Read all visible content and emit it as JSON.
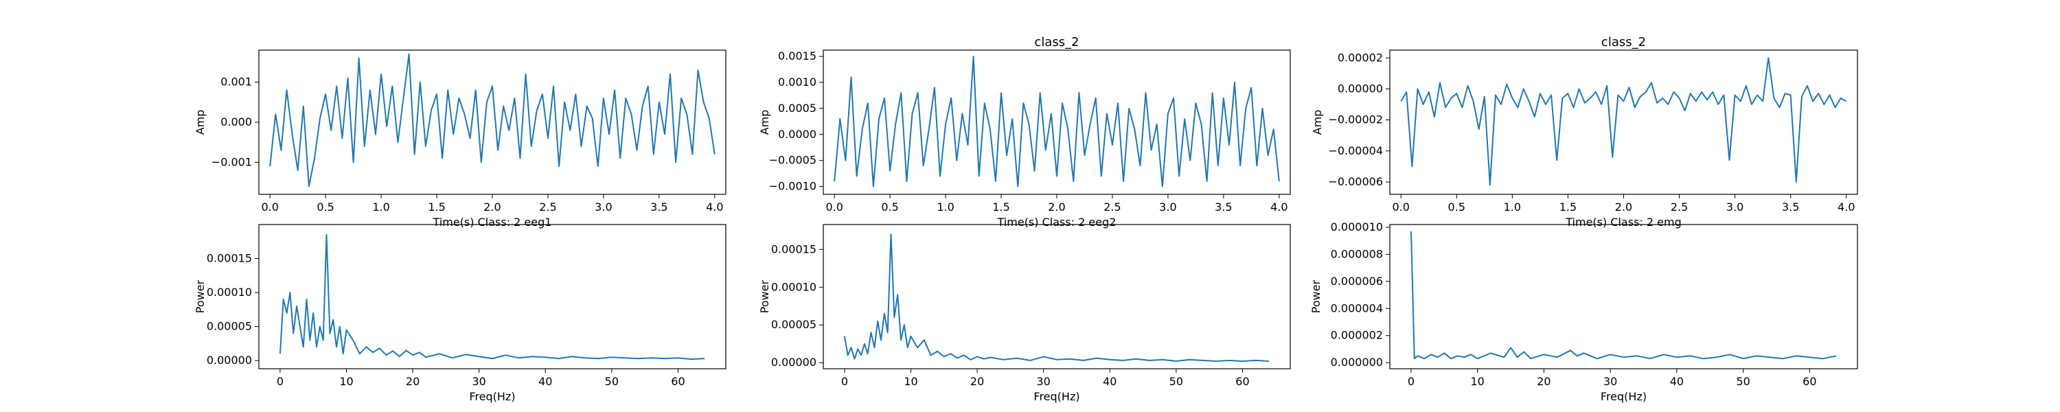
{
  "figure": {
    "background": "#ffffff",
    "line_color": "#1f77b4"
  },
  "chart_data": [
    {
      "id": "eeg1-time",
      "type": "line",
      "title": "",
      "xlabel": "Time(s) Class: 2 eeg1",
      "ylabel": "Amp",
      "xlim": [
        -0.1,
        4.1
      ],
      "ylim": [
        -0.0018,
        0.0018
      ],
      "xticks": [
        0.0,
        0.5,
        1.0,
        1.5,
        2.0,
        2.5,
        3.0,
        3.5,
        4.0
      ],
      "xtick_labels": [
        "0.0",
        "0.5",
        "1.0",
        "1.5",
        "2.0",
        "2.5",
        "3.0",
        "3.5",
        "4.0"
      ],
      "yticks": [
        -0.001,
        0.0,
        0.001
      ],
      "ytick_labels": [
        "−0.001",
        "0.000",
        "0.001"
      ],
      "grid": false,
      "series": [
        {
          "x": [
            0.0,
            0.05,
            0.1,
            0.15,
            0.2,
            0.25,
            0.3,
            0.35,
            0.4,
            0.45,
            0.5,
            0.55,
            0.6,
            0.65,
            0.7,
            0.75,
            0.8,
            0.85,
            0.9,
            0.95,
            1.0,
            1.05,
            1.1,
            1.15,
            1.2,
            1.25,
            1.3,
            1.35,
            1.4,
            1.45,
            1.5,
            1.55,
            1.6,
            1.65,
            1.7,
            1.75,
            1.8,
            1.85,
            1.9,
            1.95,
            2.0,
            2.05,
            2.1,
            2.15,
            2.2,
            2.25,
            2.3,
            2.35,
            2.4,
            2.45,
            2.5,
            2.55,
            2.6,
            2.65,
            2.7,
            2.75,
            2.8,
            2.85,
            2.9,
            2.95,
            3.0,
            3.05,
            3.1,
            3.15,
            3.2,
            3.25,
            3.3,
            3.35,
            3.4,
            3.45,
            3.5,
            3.55,
            3.6,
            3.65,
            3.7,
            3.75,
            3.8,
            3.85,
            3.9,
            3.95,
            4.0
          ],
          "values": [
            -0.0011,
            0.0002,
            -0.0007,
            0.0008,
            -0.0003,
            -0.0012,
            0.0004,
            -0.0016,
            -0.0009,
            0.0001,
            0.0007,
            -0.0002,
            0.0009,
            -0.0004,
            0.0011,
            -0.001,
            0.0016,
            -0.0006,
            0.0008,
            -0.0003,
            0.0012,
            -0.0001,
            0.0009,
            -0.0005,
            0.0006,
            0.0017,
            -0.0008,
            0.001,
            -0.0006,
            0.0003,
            0.0007,
            -0.0009,
            0.0008,
            -0.0003,
            0.0006,
            0.0002,
            -0.0004,
            0.0008,
            -0.001,
            0.0005,
            0.0009,
            -0.0007,
            0.0004,
            -0.0002,
            0.0006,
            -0.0009,
            0.0012,
            -0.0006,
            0.0003,
            0.0007,
            -0.0004,
            0.0009,
            -0.0011,
            0.0005,
            -0.0002,
            0.0007,
            -0.0006,
            0.0004,
            0.0001,
            -0.0011,
            0.0006,
            -0.0003,
            0.0008,
            -0.0009,
            0.0006,
            0.0002,
            -0.0007,
            0.0004,
            0.0009,
            -0.0008,
            0.0005,
            -0.0003,
            0.0012,
            -0.001,
            0.0006,
            0.0002,
            -0.0008,
            0.0013,
            0.0005,
            0.0001,
            -0.0008
          ]
        }
      ]
    },
    {
      "id": "eeg2-time",
      "type": "line",
      "title": "class_2",
      "xlabel": "Time(s) Class: 2 eeg2",
      "ylabel": "Amp",
      "xlim": [
        -0.1,
        4.1
      ],
      "ylim": [
        -0.00115,
        0.00162
      ],
      "xticks": [
        0.0,
        0.5,
        1.0,
        1.5,
        2.0,
        2.5,
        3.0,
        3.5,
        4.0
      ],
      "xtick_labels": [
        "0.0",
        "0.5",
        "1.0",
        "1.5",
        "2.0",
        "2.5",
        "3.0",
        "3.5",
        "4.0"
      ],
      "yticks": [
        -0.001,
        -0.0005,
        0.0,
        0.0005,
        0.001,
        0.0015
      ],
      "ytick_labels": [
        "−0.0010",
        "−0.0005",
        "0.0000",
        "0.0005",
        "0.0010",
        "0.0015"
      ],
      "grid": false,
      "series": [
        {
          "x": [
            0.0,
            0.05,
            0.1,
            0.15,
            0.2,
            0.25,
            0.3,
            0.35,
            0.4,
            0.45,
            0.5,
            0.55,
            0.6,
            0.65,
            0.7,
            0.75,
            0.8,
            0.85,
            0.9,
            0.95,
            1.0,
            1.05,
            1.1,
            1.15,
            1.2,
            1.25,
            1.3,
            1.35,
            1.4,
            1.45,
            1.5,
            1.55,
            1.6,
            1.65,
            1.7,
            1.75,
            1.8,
            1.85,
            1.9,
            1.95,
            2.0,
            2.05,
            2.1,
            2.15,
            2.2,
            2.25,
            2.3,
            2.35,
            2.4,
            2.45,
            2.5,
            2.55,
            2.6,
            2.65,
            2.7,
            2.75,
            2.8,
            2.85,
            2.9,
            2.95,
            3.0,
            3.05,
            3.1,
            3.15,
            3.2,
            3.25,
            3.3,
            3.35,
            3.4,
            3.45,
            3.5,
            3.55,
            3.6,
            3.65,
            3.7,
            3.75,
            3.8,
            3.85,
            3.9,
            3.95,
            4.0
          ],
          "values": [
            -0.0009,
            0.0003,
            -0.0005,
            0.0011,
            -0.0008,
            0.0001,
            0.0006,
            -0.001,
            0.0003,
            0.0007,
            -0.0007,
            0.0002,
            0.0008,
            -0.0009,
            0.0004,
            0.0008,
            -0.0006,
            0.0001,
            0.0009,
            -0.0008,
            0.0002,
            0.0007,
            -0.0005,
            0.0004,
            -0.0002,
            0.0015,
            -0.0008,
            0.0006,
            0.0001,
            -0.0009,
            0.0008,
            -0.0004,
            0.0003,
            -0.001,
            0.0006,
            0.0002,
            -0.0007,
            0.0008,
            -0.0003,
            0.0004,
            -0.0008,
            0.0006,
            0.0001,
            -0.0009,
            0.0008,
            -0.0004,
            0.0002,
            0.0007,
            -0.0008,
            0.0004,
            -0.0002,
            0.0006,
            -0.0009,
            0.0005,
            0.0001,
            -0.0006,
            0.0008,
            -0.0003,
            0.0002,
            -0.001,
            0.0004,
            0.0007,
            -0.0008,
            0.0003,
            -0.0005,
            0.0006,
            0.0002,
            -0.0009,
            0.0008,
            -0.0006,
            0.0007,
            -0.0002,
            0.001,
            -0.0006,
            0.0005,
            0.0009,
            -0.0006,
            0.0005,
            -0.0004,
            0.0001,
            -0.0009
          ]
        }
      ]
    },
    {
      "id": "emg-time",
      "type": "line",
      "title": "class_2",
      "xlabel": "Time(s) Class: 2 emg",
      "ylabel": "Amp",
      "xlim": [
        -0.1,
        4.1
      ],
      "ylim": [
        -6.8e-05,
        2.5e-05
      ],
      "xticks": [
        0.0,
        0.5,
        1.0,
        1.5,
        2.0,
        2.5,
        3.0,
        3.5,
        4.0
      ],
      "xtick_labels": [
        "0.0",
        "0.5",
        "1.0",
        "1.5",
        "2.0",
        "2.5",
        "3.0",
        "3.5",
        "4.0"
      ],
      "yticks": [
        -6e-05,
        -4e-05,
        -2e-05,
        0.0,
        2e-05
      ],
      "ytick_labels": [
        "−0.00006",
        "−0.00004",
        "−0.00002",
        "0.00000",
        "0.00002"
      ],
      "grid": false,
      "series": [
        {
          "x": [
            0.0,
            0.05,
            0.1,
            0.15,
            0.2,
            0.25,
            0.3,
            0.35,
            0.4,
            0.45,
            0.5,
            0.55,
            0.6,
            0.65,
            0.7,
            0.75,
            0.8,
            0.85,
            0.9,
            0.95,
            1.0,
            1.05,
            1.1,
            1.15,
            1.2,
            1.25,
            1.3,
            1.35,
            1.4,
            1.45,
            1.5,
            1.55,
            1.6,
            1.65,
            1.7,
            1.75,
            1.8,
            1.85,
            1.9,
            1.95,
            2.0,
            2.05,
            2.1,
            2.15,
            2.2,
            2.25,
            2.3,
            2.35,
            2.4,
            2.45,
            2.5,
            2.55,
            2.6,
            2.65,
            2.7,
            2.75,
            2.8,
            2.85,
            2.9,
            2.95,
            3.0,
            3.05,
            3.1,
            3.15,
            3.2,
            3.25,
            3.3,
            3.35,
            3.4,
            3.45,
            3.5,
            3.55,
            3.6,
            3.65,
            3.7,
            3.75,
            3.8,
            3.85,
            3.9,
            3.95,
            4.0
          ],
          "values": [
            -8e-06,
            -2e-06,
            -5e-05,
            0.0,
            -1e-05,
            -2e-06,
            -1.8e-05,
            4e-06,
            -1.2e-05,
            -6e-06,
            -3e-06,
            -1.2e-05,
            2e-06,
            -8e-06,
            -2.6e-05,
            -5e-06,
            -6.2e-05,
            -4e-06,
            -1e-05,
            3e-06,
            -6e-06,
            -1.2e-05,
            0.0,
            -8e-06,
            -1.8e-05,
            -3e-06,
            -1e-05,
            -4e-06,
            -4.6e-05,
            -6e-06,
            -3e-06,
            -1.2e-05,
            0.0,
            -9e-06,
            -6e-06,
            -2e-06,
            -1e-05,
            2e-06,
            -4.4e-05,
            -4e-06,
            -8e-06,
            1e-06,
            -1.2e-05,
            -5e-06,
            -2e-06,
            4e-06,
            -9e-06,
            -6e-06,
            -1e-05,
            -2e-06,
            -6e-06,
            -1.4e-05,
            -3e-06,
            -8e-06,
            -2e-06,
            -7e-06,
            -2e-06,
            -1e-05,
            -4e-06,
            -4.6e-05,
            -4e-06,
            -8e-06,
            2e-06,
            -1e-05,
            -4e-06,
            -8e-06,
            2e-05,
            -6e-06,
            -1.2e-05,
            -3e-06,
            -4e-06,
            -6e-05,
            -5e-06,
            2e-06,
            -8e-06,
            -3e-06,
            -1e-05,
            -4e-06,
            -1.2e-05,
            -6e-06,
            -8e-06
          ]
        }
      ]
    },
    {
      "id": "eeg1-power",
      "type": "line",
      "title": "",
      "xlabel": "Freq(Hz)",
      "ylabel": "Power",
      "xlim": [
        -3.2,
        67.2
      ],
      "ylim": [
        -1.2e-05,
        0.0002
      ],
      "xticks": [
        0,
        10,
        20,
        30,
        40,
        50,
        60
      ],
      "xtick_labels": [
        "0",
        "10",
        "20",
        "30",
        "40",
        "50",
        "60"
      ],
      "yticks": [
        0.0,
        5e-05,
        0.0001,
        0.00015
      ],
      "ytick_labels": [
        "0.00000",
        "0.00005",
        "0.00010",
        "0.00015"
      ],
      "grid": false,
      "series": [
        {
          "x": [
            0,
            0.5,
            1,
            1.5,
            2,
            2.5,
            3,
            3.5,
            4,
            4.5,
            5,
            5.5,
            6,
            6.5,
            7,
            7.5,
            8,
            8.5,
            9,
            9.5,
            10,
            11,
            12,
            13,
            14,
            15,
            16,
            17,
            18,
            19,
            20,
            21,
            22,
            24,
            26,
            28,
            30,
            32,
            34,
            36,
            38,
            40,
            42,
            44,
            46,
            48,
            50,
            52,
            54,
            56,
            58,
            60,
            62,
            64
          ],
          "values": [
            1e-05,
            9e-05,
            7e-05,
            0.0001,
            4e-05,
            8e-05,
            5e-05,
            2e-05,
            9e-05,
            3e-05,
            7e-05,
            2e-05,
            5e-05,
            3e-05,
            0.000185,
            4e-05,
            6e-05,
            2e-05,
            5e-05,
            1e-05,
            4.5e-05,
            3e-05,
            1e-05,
            2e-05,
            1.2e-05,
            1.8e-05,
            8e-06,
            1.4e-05,
            6e-06,
            1.5e-05,
            8e-06,
            1.2e-05,
            5e-06,
            1e-05,
            4e-06,
            9e-06,
            6e-06,
            3e-06,
            8e-06,
            4e-06,
            6e-06,
            5e-06,
            3e-06,
            6e-06,
            4e-06,
            3e-06,
            5e-06,
            4e-06,
            3e-06,
            4e-06,
            3e-06,
            4e-06,
            2e-06,
            3e-06
          ]
        }
      ]
    },
    {
      "id": "eeg2-power",
      "type": "line",
      "title": "",
      "xlabel": "Freq(Hz)",
      "ylabel": "Power",
      "xlim": [
        -3.2,
        67.2
      ],
      "ylim": [
        -8e-06,
        0.000183
      ],
      "xticks": [
        0,
        10,
        20,
        30,
        40,
        50,
        60
      ],
      "xtick_labels": [
        "0",
        "10",
        "20",
        "30",
        "40",
        "50",
        "60"
      ],
      "yticks": [
        0.0,
        5e-05,
        0.0001,
        0.00015
      ],
      "ytick_labels": [
        "0.00000",
        "0.00005",
        "0.00010",
        "0.00015"
      ],
      "grid": false,
      "series": [
        {
          "x": [
            0,
            0.5,
            1,
            1.5,
            2,
            2.5,
            3,
            3.5,
            4,
            4.5,
            5,
            5.5,
            6,
            6.5,
            7,
            7.5,
            8,
            8.5,
            9,
            9.5,
            10,
            11,
            12,
            13,
            14,
            15,
            16,
            17,
            18,
            19,
            20,
            21,
            22,
            24,
            26,
            28,
            30,
            32,
            34,
            36,
            38,
            40,
            42,
            44,
            46,
            48,
            50,
            52,
            54,
            56,
            58,
            60,
            62,
            64
          ],
          "values": [
            3.5e-05,
            1e-05,
            2e-05,
            5e-06,
            1.8e-05,
            1e-05,
            2.5e-05,
            1.2e-05,
            4e-05,
            2e-05,
            5.5e-05,
            3e-05,
            6.5e-05,
            4e-05,
            0.00017,
            6e-05,
            9e-05,
            3e-05,
            5e-05,
            2e-05,
            3.5e-05,
            2e-05,
            3e-05,
            1e-05,
            1.5e-05,
            8e-06,
            1.2e-05,
            6e-06,
            1e-05,
            4e-06,
            8e-06,
            5e-06,
            7e-06,
            4e-06,
            6e-06,
            3e-06,
            8e-06,
            4e-06,
            5e-06,
            3e-06,
            6e-06,
            4e-06,
            3e-06,
            5e-06,
            3e-06,
            4e-06,
            2e-06,
            4e-06,
            3e-06,
            2e-06,
            3e-06,
            2e-06,
            3e-06,
            2e-06
          ]
        }
      ]
    },
    {
      "id": "emg-power",
      "type": "line",
      "title": "",
      "xlabel": "Freq(Hz)",
      "ylabel": "Power",
      "xlim": [
        -3.2,
        67.2
      ],
      "ylim": [
        -4.5e-07,
        1.02e-05
      ],
      "xticks": [
        0,
        10,
        20,
        30,
        40,
        50,
        60
      ],
      "xtick_labels": [
        "0",
        "10",
        "20",
        "30",
        "40",
        "50",
        "60"
      ],
      "yticks": [
        0.0,
        2e-06,
        4e-06,
        6e-06,
        8e-06,
        1e-05
      ],
      "ytick_labels": [
        "0.000000",
        "0.000002",
        "0.000004",
        "0.000006",
        "0.000008",
        "0.000010"
      ],
      "grid": false,
      "series": [
        {
          "x": [
            0,
            0.5,
            1,
            2,
            3,
            4,
            5,
            6,
            7,
            8,
            9,
            10,
            12,
            14,
            15,
            16,
            17,
            18,
            20,
            22,
            24,
            25,
            26,
            28,
            30,
            32,
            34,
            36,
            38,
            40,
            42,
            44,
            46,
            48,
            50,
            52,
            54,
            56,
            58,
            60,
            62,
            64
          ],
          "values": [
            9.7e-06,
            3e-07,
            5e-07,
            3e-07,
            6e-07,
            4e-07,
            7e-07,
            3e-07,
            5e-07,
            4e-07,
            6e-07,
            3e-07,
            7e-07,
            4e-07,
            1.1e-06,
            4e-07,
            8e-07,
            3e-07,
            6e-07,
            4e-07,
            9e-07,
            5e-07,
            7e-07,
            3e-07,
            6e-07,
            4e-07,
            5e-07,
            3e-07,
            6e-07,
            4e-07,
            5e-07,
            3e-07,
            4e-07,
            6e-07,
            3e-07,
            5e-07,
            4e-07,
            3e-07,
            5e-07,
            4e-07,
            3e-07,
            5e-07
          ]
        }
      ]
    }
  ]
}
